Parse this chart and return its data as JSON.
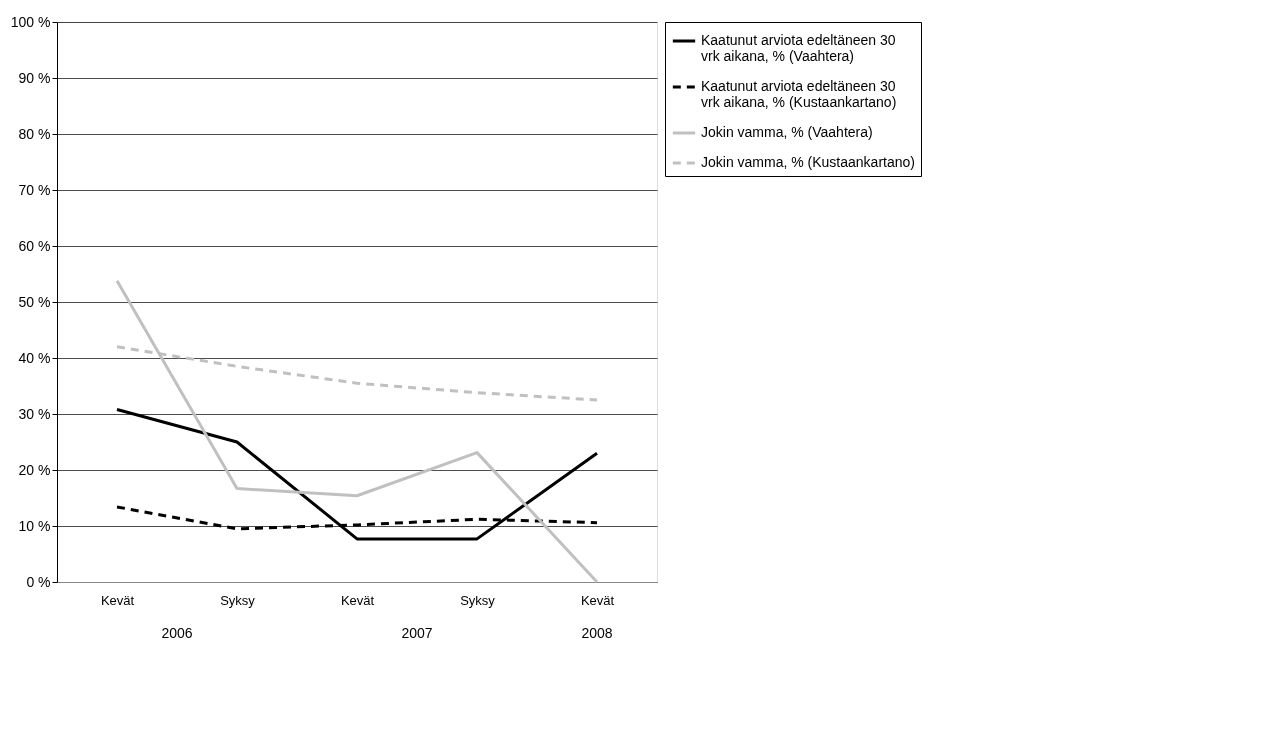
{
  "chart_data": {
    "type": "line",
    "categories": [
      "Kevät",
      "Syksy",
      "Kevät",
      "Syksy",
      "Kevät"
    ],
    "annotations": [
      "2006",
      "2007",
      "2008"
    ],
    "series": [
      {
        "name": "Kaatunut arviota edeltäneen 30 vrk aikana, % (Vaahtera)",
        "color": "#000000",
        "line_style": "solid",
        "values": [
          30.8,
          25,
          7.7,
          7.7,
          23
        ]
      },
      {
        "name": "Kaatunut arviota edeltäneen 30 vrk aikana, % (Kustaankartano)",
        "color": "#000000",
        "line_style": "dashed",
        "values": [
          13.4,
          9.5,
          10.2,
          11.2,
          10.6
        ]
      },
      {
        "name": "Jokin vamma, % (Vaahtera)",
        "color": "#c0c0c0",
        "line_style": "solid",
        "values": [
          53.8,
          16.7,
          15.4,
          23.1,
          0
        ]
      },
      {
        "name": "Jokin vamma, % (Kustaankartano)",
        "color": "#c0c0c0",
        "line_style": "dashed",
        "values": [
          42,
          38.5,
          35.5,
          33.8,
          32.5
        ]
      }
    ],
    "ylim": [
      0,
      100
    ],
    "yticks": [
      {
        "value": 0,
        "label": "0 %"
      },
      {
        "value": 10,
        "label": "10 %"
      },
      {
        "value": 20,
        "label": "20 %"
      },
      {
        "value": 30,
        "label": "30 %"
      },
      {
        "value": 40,
        "label": "40 %"
      },
      {
        "value": 50,
        "label": "50 %"
      },
      {
        "value": 60,
        "label": "60 %"
      },
      {
        "value": 70,
        "label": "70 %"
      },
      {
        "value": 80,
        "label": "80 %"
      },
      {
        "value": 90,
        "label": "90 %"
      },
      {
        "value": 100,
        "label": "100 %"
      }
    ],
    "grid": "y",
    "legend": "right",
    "marker": "none"
  }
}
